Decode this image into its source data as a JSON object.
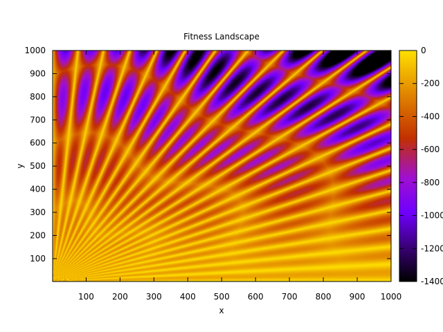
{
  "chart_data": {
    "type": "heatmap",
    "title": "Fitness Landscape",
    "xlabel": "x",
    "ylabel": "y",
    "xlim": [
      1,
      1000
    ],
    "ylim": [
      1,
      1000
    ],
    "x_ticks": [
      100,
      200,
      300,
      400,
      500,
      600,
      700,
      800,
      900,
      1000
    ],
    "y_ticks": [
      100,
      200,
      300,
      400,
      500,
      600,
      700,
      800,
      900,
      1000
    ],
    "colorbar": {
      "range": [
        -1400,
        0
      ],
      "ticks": [
        0,
        -200,
        -400,
        -600,
        -800,
        -1000,
        -1200,
        -1400
      ],
      "palette": [
        "#000000",
        "#3a0077",
        "#7000ff",
        "#a010d0",
        "#c23000",
        "#e08000",
        "#ffe000"
      ]
    },
    "grid": false
  }
}
